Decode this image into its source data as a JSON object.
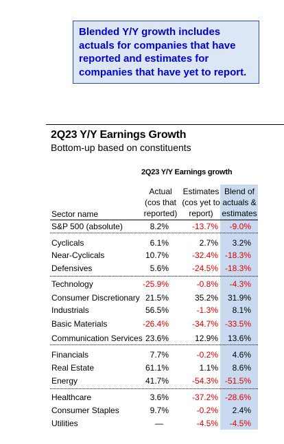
{
  "callout": {
    "text": "Blended Y/Y growth includes actuals for companies that have reported and estimates for companies that have yet to report."
  },
  "header": {
    "title": "2Q23 Y/Y Earnings Growth",
    "subtitle": "Bottom-up based on constituents"
  },
  "chart_data": {
    "type": "table",
    "title": "2Q23 Y/Y Earnings growth",
    "columns": [
      {
        "line1": "Actual",
        "line2": "(cos that",
        "line3": "reported)"
      },
      {
        "line1": "Estimates",
        "line2": "(cos yet to",
        "line3": "report)"
      },
      {
        "line1": "Blend of",
        "line2": "actuals &",
        "line3": "estimates"
      }
    ],
    "row_header": "Sector name",
    "rows": [
      {
        "name": "S&P 500 (absolute)",
        "actual": "8.2%",
        "estimates": "-13.7%",
        "blend": "-9.0%"
      },
      {
        "name": "Cyclicals",
        "actual": "6.1%",
        "estimates": "2.7%",
        "blend": "3.2%"
      },
      {
        "name": "Near-Cyclicals",
        "actual": "10.7%",
        "estimates": "-32.4%",
        "blend": "-18.3%"
      },
      {
        "name": "Defensives",
        "actual": "5.6%",
        "estimates": "-24.5%",
        "blend": "-18.3%"
      },
      {
        "name": "Technology",
        "actual": "-25.9%",
        "estimates": "-0.8%",
        "blend": "-4.3%"
      },
      {
        "name": "Consumer Discretionary",
        "actual": "21.5%",
        "estimates": "35.2%",
        "blend": "31.9%"
      },
      {
        "name": "Industrials",
        "actual": "56.5%",
        "estimates": "-1.3%",
        "blend": "8.1%"
      },
      {
        "name": "Basic Materials",
        "actual": "-26.4%",
        "estimates": "-34.7%",
        "blend": "-33.5%"
      },
      {
        "name": "Communication Services",
        "actual": "23.6%",
        "estimates": "12.9%",
        "blend": "13.6%"
      },
      {
        "name": "Financials",
        "actual": "7.7%",
        "estimates": "-0.2%",
        "blend": "4.6%"
      },
      {
        "name": "Real Estate",
        "actual": "61.1%",
        "estimates": "1.1%",
        "blend": "8.6%"
      },
      {
        "name": "Energy",
        "actual": "41.7%",
        "estimates": "-54.3%",
        "blend": "-51.5%"
      },
      {
        "name": "Healthcare",
        "actual": "3.6%",
        "estimates": "-37.2%",
        "blend": "-28.6%"
      },
      {
        "name": "Consumer Staples",
        "actual": "9.7%",
        "estimates": "-0.2%",
        "blend": "2.4%"
      },
      {
        "name": "Utilities",
        "actual": "—",
        "estimates": "-4.5%",
        "blend": "-4.5%"
      }
    ],
    "colors": {
      "negative": "#e00000",
      "blend_highlight": "#c9daf0",
      "callout_text": "#0000cc"
    }
  }
}
